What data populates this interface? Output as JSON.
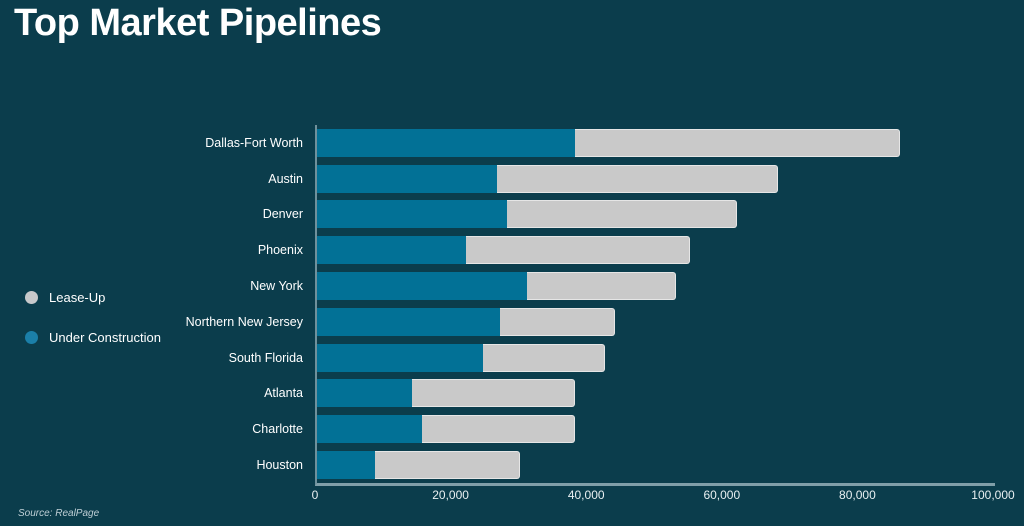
{
  "title": "Top Market Pipelines",
  "source": "Source: RealPage",
  "colors": {
    "background": "#0B3D4C",
    "under_construction": "#027196",
    "lease_up": "#C9C9C9",
    "axis_line": "#A9C2CA",
    "text": "#FFFFFF"
  },
  "legend": [
    {
      "label": "Lease-Up",
      "color": "#C7C9CB"
    },
    {
      "label": "Under Construction",
      "color": "#1B7FA8"
    }
  ],
  "chart_data": {
    "type": "bar",
    "orientation": "horizontal",
    "stacked": true,
    "title": "Top Market Pipelines",
    "categories": [
      "Dallas-Fort Worth",
      "Austin",
      "Denver",
      "Phoenix",
      "New York",
      "Northern New Jersey",
      "South Florida",
      "Atlanta",
      "Charlotte",
      "Houston"
    ],
    "series": [
      {
        "name": "Under Construction",
        "color": "#027196",
        "values": [
          38000,
          26500,
          28000,
          22000,
          31000,
          27000,
          24500,
          14000,
          15500,
          8500
        ]
      },
      {
        "name": "Lease-Up",
        "color": "#C9C9C9",
        "values": [
          48000,
          41500,
          34000,
          33000,
          22000,
          17000,
          18000,
          24000,
          22500,
          21500
        ]
      }
    ],
    "totals": [
      86000,
      68000,
      62000,
      55000,
      53000,
      44000,
      42500,
      38000,
      38000,
      30000
    ],
    "xlim": [
      0,
      100000
    ],
    "xtick_labels": [
      "0",
      "20,000",
      "40,000",
      "60,000",
      "80,000",
      "100,000"
    ],
    "xtick_values": [
      0,
      20000,
      40000,
      60000,
      80000,
      100000
    ],
    "grid": false,
    "legend_position": "left"
  }
}
